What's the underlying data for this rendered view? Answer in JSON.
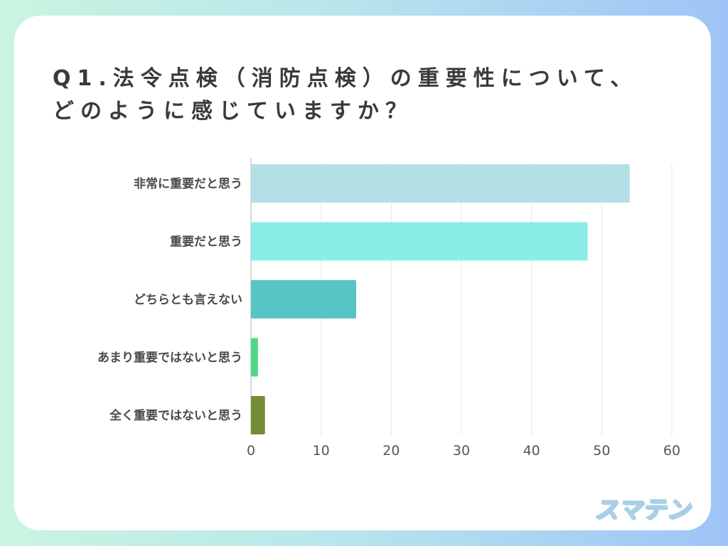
{
  "title": {
    "line1": "Q1.法令点検（消防点検）の重要性について、",
    "line2": "どのように感じていますか？"
  },
  "logo_text": "スマテン",
  "chart_data": {
    "type": "bar",
    "orientation": "horizontal",
    "categories": [
      "非常に重要だと思う",
      "重要だと思う",
      "どちらとも言えない",
      "あまり重要ではないと思う",
      "全く重要ではないと思う"
    ],
    "values": [
      54,
      48,
      15,
      1,
      2
    ],
    "colors": [
      "#b3dfe6",
      "#8aede6",
      "#58c4c4",
      "#4fd884",
      "#748c35"
    ],
    "xlim": [
      0,
      60
    ],
    "xticks": [
      0,
      10,
      20,
      30,
      40,
      50,
      60
    ],
    "grid": true,
    "gridline_color": "#e6e6e6",
    "axis_color": "#cccccc"
  }
}
